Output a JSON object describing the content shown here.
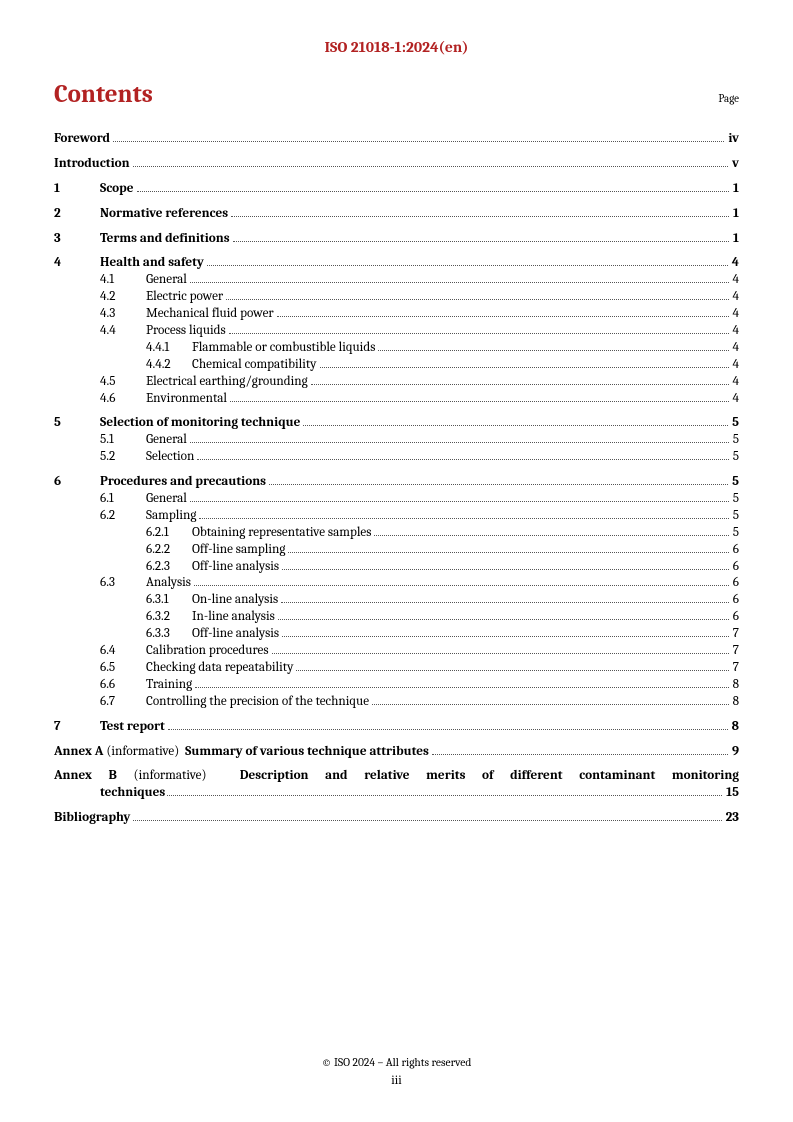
{
  "header": "ISO 21018-1:2024(en)",
  "title": "Contents",
  "page_label": "Page",
  "foreword": {
    "label": "Foreword",
    "page": "iv"
  },
  "introduction": {
    "label": "Introduction",
    "page": "v"
  },
  "sections": {
    "s1": {
      "num": "1",
      "title": "Scope",
      "page": "1"
    },
    "s2": {
      "num": "2",
      "title": "Normative references",
      "page": "1"
    },
    "s3": {
      "num": "3",
      "title": "Terms and definitions",
      "page": "1"
    },
    "s4": {
      "num": "4",
      "title": "Health and safety",
      "page": "4",
      "s4_1": {
        "num": "4.1",
        "title": "General",
        "page": "4"
      },
      "s4_2": {
        "num": "4.2",
        "title": "Electric power",
        "page": "4"
      },
      "s4_3": {
        "num": "4.3",
        "title": "Mechanical fluid power",
        "page": "4"
      },
      "s4_4": {
        "num": "4.4",
        "title": "Process liquids",
        "page": "4",
        "s4_4_1": {
          "num": "4.4.1",
          "title": "Flammable or combustible liquids",
          "page": "4"
        },
        "s4_4_2": {
          "num": "4.4.2",
          "title": "Chemical compatibility",
          "page": "4"
        }
      },
      "s4_5": {
        "num": "4.5",
        "title": "Electrical earthing/grounding",
        "page": "4"
      },
      "s4_6": {
        "num": "4.6",
        "title": "Environmental",
        "page": "4"
      }
    },
    "s5": {
      "num": "5",
      "title": "Selection of monitoring technique",
      "page": "5",
      "s5_1": {
        "num": "5.1",
        "title": "General",
        "page": "5"
      },
      "s5_2": {
        "num": "5.2",
        "title": "Selection",
        "page": "5"
      }
    },
    "s6": {
      "num": "6",
      "title": "Procedures and precautions",
      "page": "5",
      "s6_1": {
        "num": "6.1",
        "title": "General",
        "page": "5"
      },
      "s6_2": {
        "num": "6.2",
        "title": "Sampling",
        "page": "5",
        "s6_2_1": {
          "num": "6.2.1",
          "title": "Obtaining representative samples",
          "page": "5"
        },
        "s6_2_2": {
          "num": "6.2.2",
          "title": "Off-line sampling",
          "page": "6"
        },
        "s6_2_3": {
          "num": "6.2.3",
          "title": "Off-line analysis",
          "page": "6"
        }
      },
      "s6_3": {
        "num": "6.3",
        "title": "Analysis",
        "page": "6",
        "s6_3_1": {
          "num": "6.3.1",
          "title": "On-line analysis",
          "page": "6"
        },
        "s6_3_2": {
          "num": "6.3.2",
          "title": "In-line analysis",
          "page": "6"
        },
        "s6_3_3": {
          "num": "6.3.3",
          "title": "Off-line analysis",
          "page": "7"
        }
      },
      "s6_4": {
        "num": "6.4",
        "title": "Calibration procedures",
        "page": "7"
      },
      "s6_5": {
        "num": "6.5",
        "title": "Checking data repeatability",
        "page": "7"
      },
      "s6_6": {
        "num": "6.6",
        "title": "Training",
        "page": "8"
      },
      "s6_7": {
        "num": "6.7",
        "title": "Controlling the precision of the technique",
        "page": "8"
      }
    },
    "s7": {
      "num": "7",
      "title": "Test report",
      "page": "8"
    }
  },
  "annex_a": {
    "prefix": "Annex A",
    "info": "(informative)",
    "title": "Summary of various technique attributes",
    "page": "9"
  },
  "annex_b": {
    "prefix": "Annex B",
    "info": "(informative)",
    "line1_title": "Description and relative merits of different contaminant monitoring",
    "line2_title": "techniques",
    "page": "15"
  },
  "bibliography": {
    "label": "Bibliography",
    "page": "23"
  },
  "footer": {
    "copyright": "© ISO 2024 – All rights reserved",
    "pagenum": "iii"
  }
}
